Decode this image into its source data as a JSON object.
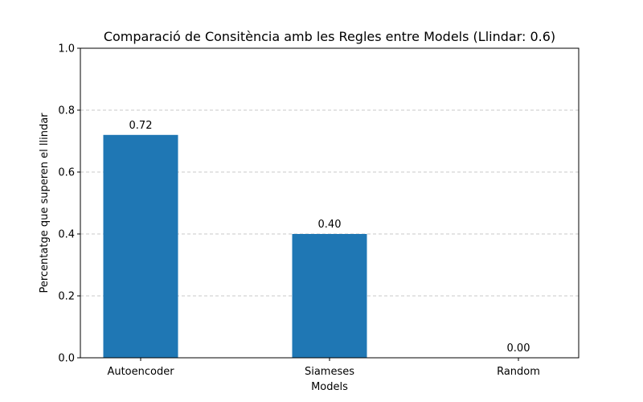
{
  "chart_data": {
    "type": "bar",
    "title": "Comparació de Consitència amb les Regles entre Models (Llindar: 0.6)",
    "xlabel": "Models",
    "ylabel": "Percentatge que superen el llindar",
    "categories": [
      "Autoencoder",
      "Siameses",
      "Random"
    ],
    "values": [
      0.72,
      0.4,
      0.0
    ],
    "value_labels": [
      "0.72",
      "0.40",
      "0.00"
    ],
    "ylim": [
      0,
      1.0
    ],
    "yticks": [
      0.0,
      0.2,
      0.4,
      0.6,
      0.8,
      1.0
    ],
    "ytick_labels": [
      "0.0",
      "0.2",
      "0.4",
      "0.6",
      "0.8",
      "1.0"
    ],
    "grid": "y-dashed",
    "colors": {
      "bar": "#1f77b4",
      "grid": "#c8c8c8",
      "axis": "#000000"
    }
  }
}
